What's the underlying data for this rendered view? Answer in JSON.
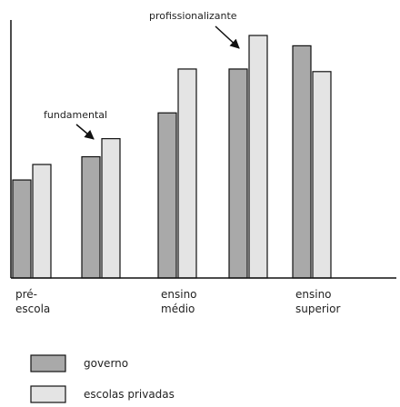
{
  "chart_data": {
    "type": "bar",
    "categories": [
      "pré-escola",
      "fundamental",
      "ensino médio",
      "profissionalizante",
      "ensino superior"
    ],
    "category_labels": [
      [
        "pré-",
        "escola"
      ],
      [],
      [
        "ensino",
        "médio"
      ],
      [],
      [
        "ensino",
        "superior"
      ]
    ],
    "series": [
      {
        "name": "governo",
        "values": [
          38,
          47,
          64,
          81,
          90
        ],
        "color": "#a9a9a9"
      },
      {
        "name": "escolas privadas",
        "values": [
          44,
          54,
          81,
          94,
          80
        ],
        "color": "#e4e4e4"
      }
    ],
    "ylim": [
      0,
      100
    ],
    "grid": false,
    "legend_position": "bottom-left",
    "annotations": [
      {
        "text": "fundamental",
        "category": 1
      },
      {
        "text": "profissionalizante",
        "category": 3
      }
    ]
  }
}
